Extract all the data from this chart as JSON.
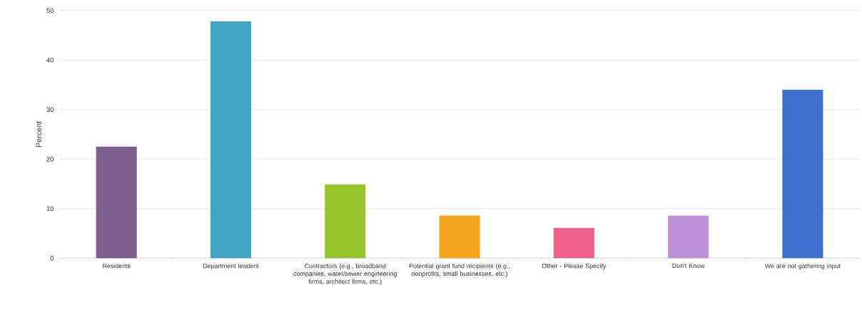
{
  "chart_data": {
    "type": "bar",
    "ylabel": "Percent",
    "categories": [
      "Residents",
      "Department leaders",
      "Contractors (e.g., broadband companies, water/sewer engineering firms, architect firms, etc.)",
      "Potential grant fund recipients (e.g., nonprofits, small businesses, etc.)",
      "Other - Please Specify",
      "Don't Know",
      "We are not gathering input"
    ],
    "values": [
      22.5,
      47.8,
      14.9,
      8.6,
      6.1,
      8.6,
      34.0
    ],
    "colors": [
      "#7b5f8e",
      "#3fa3c2",
      "#95c52a",
      "#f4a41c",
      "#ee6186",
      "#bd8fd9",
      "#3d6fcc"
    ],
    "ylim": [
      0,
      50
    ],
    "yticks": [
      0,
      10,
      20,
      30,
      40,
      50
    ],
    "grid": "y"
  }
}
